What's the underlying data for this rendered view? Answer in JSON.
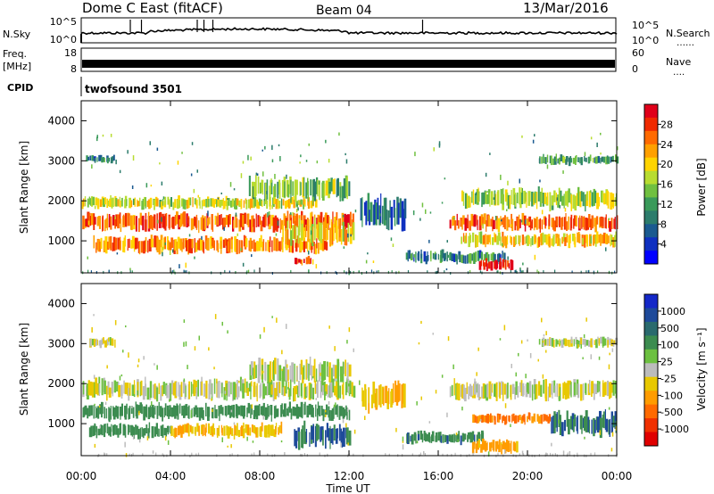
{
  "header": {
    "station": "Dome C East (fitACF)",
    "beam": "Beam 04",
    "date": "13/Mar/2016"
  },
  "strip_panels": {
    "nsky": {
      "label": "N.Sky",
      "ticks_left": [
        "10^5",
        "10^0"
      ],
      "ticks_right": [
        "10^5",
        "10^0"
      ],
      "right_label": "N.Search",
      "right_dots": "……"
    },
    "freq": {
      "label_line1": "Freq.",
      "label_line2": "[MHz]",
      "ticks_left": [
        "18",
        "8"
      ],
      "ticks_right": [
        "60",
        "0"
      ],
      "right_label": "Nave",
      "right_dots": "…."
    },
    "cpid": {
      "label": "CPID",
      "value": "twofsound 3501"
    }
  },
  "x_axis": {
    "label": "Time UT",
    "ticks": [
      "00:00",
      "04:00",
      "08:00",
      "12:00",
      "16:00",
      "20:00",
      "00:00"
    ]
  },
  "power_colorbar": {
    "label": "Power [dB]",
    "ticks": [
      "28",
      "24",
      "20",
      "16",
      "12",
      "8",
      "4"
    ],
    "colors": [
      "#e0001a",
      "#f02a00",
      "#ff6a00",
      "#ffa000",
      "#ffd400",
      "#b8dc30",
      "#70c040",
      "#3a9a5a",
      "#2c7c6c",
      "#1a5a90",
      "#0f30c0",
      "#0000ff"
    ]
  },
  "velocity_colorbar": {
    "label": "Velocity [m s⁻¹]",
    "ticks": [
      "1000",
      "500",
      "100",
      "25",
      "-25",
      "-100",
      "-500",
      "-1000"
    ],
    "colors": [
      "#1428c8",
      "#1e4a9a",
      "#2a6a6e",
      "#3c8c50",
      "#6cc040",
      "#bcbcbc",
      "#e8c800",
      "#ff9c00",
      "#ff6a00",
      "#f03000",
      "#e00000"
    ]
  },
  "chart_data": [
    {
      "type": "heatmap",
      "title": "Power",
      "xlabel": "Time UT",
      "ylabel": "Slant Range [km]",
      "x_units": "hours UT",
      "xlim": [
        0,
        24
      ],
      "ylim": [
        200,
        4500
      ],
      "y_ticks": [
        1000,
        2000,
        3000,
        4000
      ],
      "colorbar": "Power [dB]",
      "regions": [
        {
          "t0": 0.0,
          "t1": 12.2,
          "r0": 1250,
          "r1": 1700,
          "dB": 26
        },
        {
          "t0": 0.0,
          "t1": 10.5,
          "r0": 1800,
          "r1": 2100,
          "dB": 18
        },
        {
          "t0": 0.5,
          "t1": 11.0,
          "r0": 700,
          "r1": 1100,
          "dB": 24
        },
        {
          "t0": 7.5,
          "t1": 12.0,
          "r0": 2000,
          "r1": 2600,
          "dB": 14
        },
        {
          "t0": 9.0,
          "t1": 12.2,
          "r0": 900,
          "r1": 1500,
          "dB": 20
        },
        {
          "t0": 0.2,
          "t1": 1.5,
          "r0": 2950,
          "r1": 3150,
          "dB": 10
        },
        {
          "t0": 9.5,
          "t1": 10.3,
          "r0": 400,
          "r1": 600,
          "dB": 28
        },
        {
          "t0": 12.5,
          "t1": 14.5,
          "r0": 1300,
          "r1": 2100,
          "dB": 8
        },
        {
          "t0": 16.5,
          "t1": 24.0,
          "r0": 1250,
          "r1": 1650,
          "dB": 26
        },
        {
          "t0": 17.0,
          "t1": 24.0,
          "r0": 1800,
          "r1": 2300,
          "dB": 16
        },
        {
          "t0": 17.0,
          "t1": 24.0,
          "r0": 850,
          "r1": 1200,
          "dB": 20
        },
        {
          "t0": 14.5,
          "t1": 19.0,
          "r0": 450,
          "r1": 750,
          "dB": 10
        },
        {
          "t0": 17.8,
          "t1": 19.3,
          "r0": 250,
          "r1": 550,
          "dB": 30
        },
        {
          "t0": 20.5,
          "t1": 24.0,
          "r0": 2900,
          "r1": 3150,
          "dB": 12
        }
      ]
    },
    {
      "type": "heatmap",
      "title": "Velocity",
      "xlabel": "Time UT",
      "ylabel": "Slant Range [km]",
      "x_units": "hours UT",
      "xlim": [
        0,
        24
      ],
      "ylim": [
        200,
        4500
      ],
      "y_ticks": [
        1000,
        2000,
        3000,
        4000
      ],
      "colorbar": "Velocity [m s⁻¹]",
      "regions": [
        {
          "t0": 0.0,
          "t1": 12.2,
          "r0": 1600,
          "r1": 2100,
          "v": 0
        },
        {
          "t0": 0.0,
          "t1": 12.0,
          "r0": 1100,
          "r1": 1500,
          "v": 200
        },
        {
          "t0": 0.3,
          "t1": 4.0,
          "r0": 650,
          "r1": 1000,
          "v": 200
        },
        {
          "t0": 4.0,
          "t1": 9.0,
          "r0": 650,
          "r1": 1000,
          "v": -100
        },
        {
          "t0": 7.5,
          "t1": 12.0,
          "r0": 2000,
          "r1": 2600,
          "v": 0
        },
        {
          "t0": 9.5,
          "t1": 12.0,
          "r0": 400,
          "r1": 1000,
          "v": 300
        },
        {
          "t0": 0.3,
          "t1": 1.5,
          "r0": 2900,
          "r1": 3150,
          "v": 0
        },
        {
          "t0": 16.5,
          "t1": 24.0,
          "r0": 1600,
          "r1": 2100,
          "v": 0
        },
        {
          "t0": 17.5,
          "t1": 21.0,
          "r0": 1000,
          "r1": 1250,
          "v": -300
        },
        {
          "t0": 21.0,
          "t1": 24.0,
          "r0": 700,
          "r1": 1300,
          "v": 300
        },
        {
          "t0": 14.5,
          "t1": 18.0,
          "r0": 500,
          "r1": 800,
          "v": 250
        },
        {
          "t0": 17.5,
          "t1": 19.5,
          "r0": 250,
          "r1": 600,
          "v": -150
        },
        {
          "t0": 20.5,
          "t1": 24.0,
          "r0": 2900,
          "r1": 3150,
          "v": 0
        },
        {
          "t0": 12.5,
          "t1": 14.5,
          "r0": 1300,
          "r1": 2000,
          "v": -100
        }
      ]
    }
  ]
}
